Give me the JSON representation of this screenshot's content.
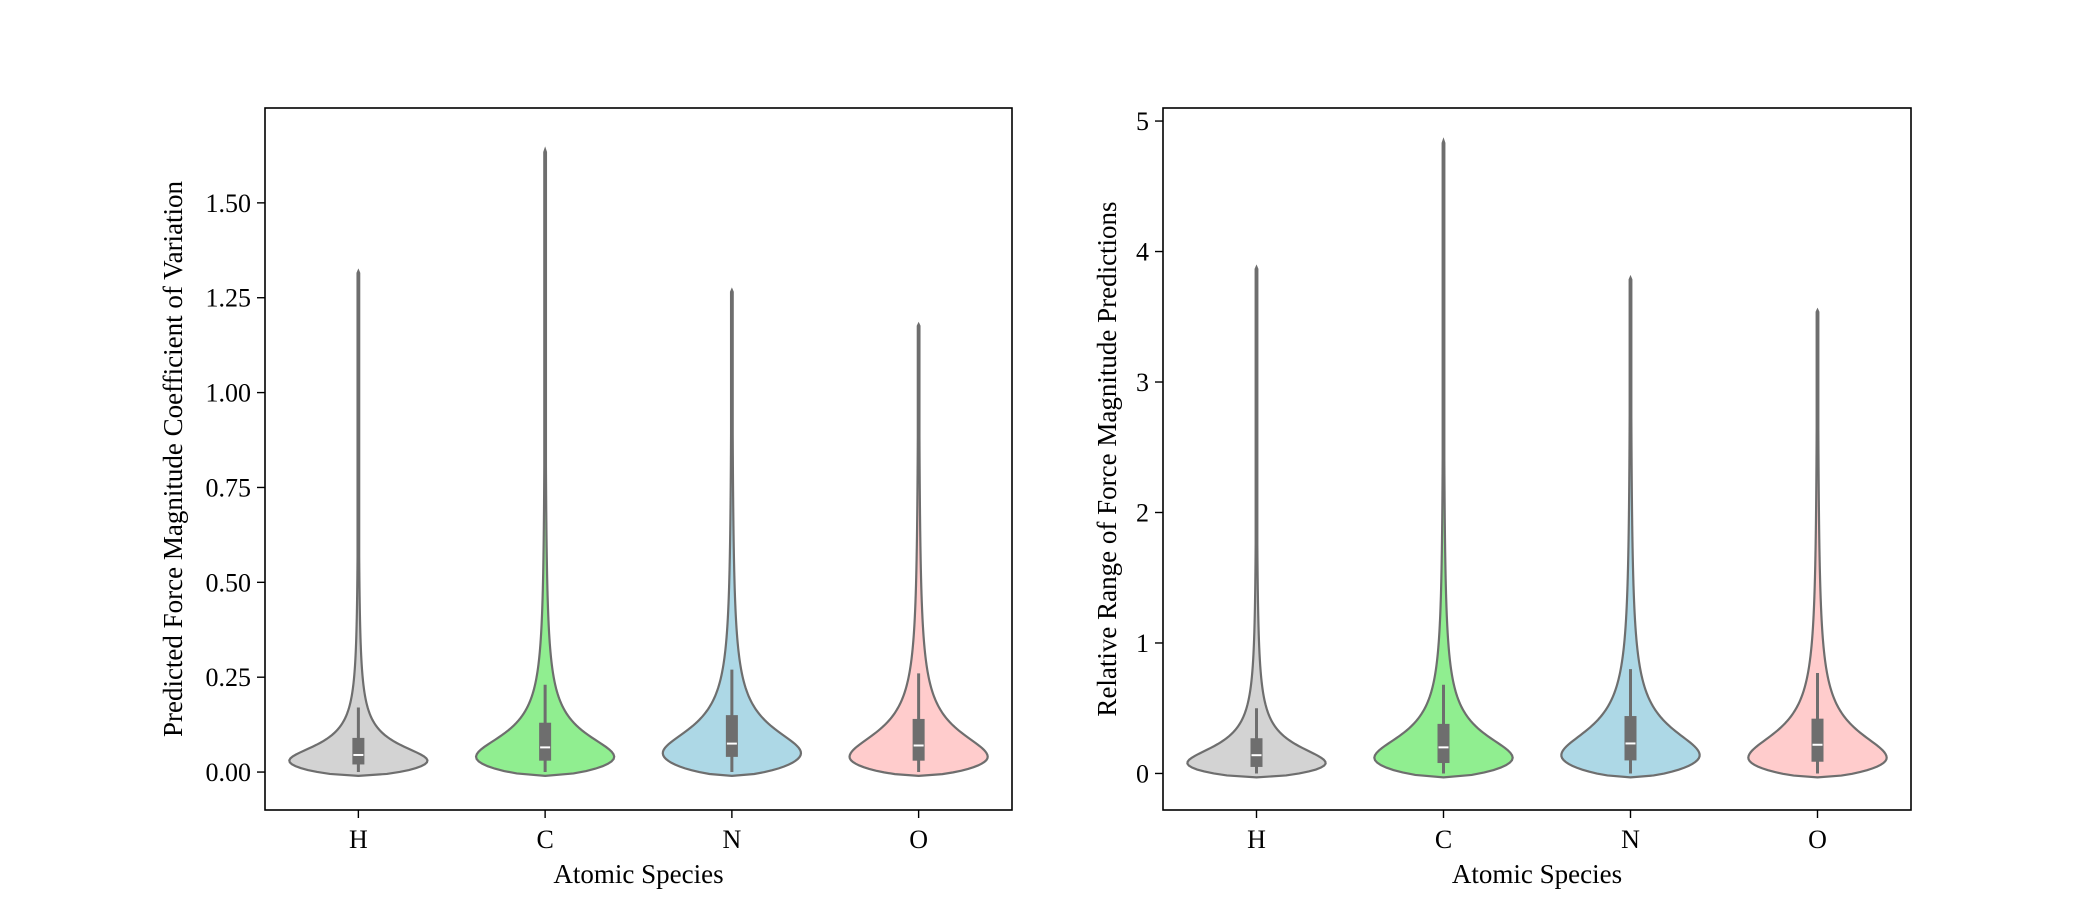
{
  "chart_data": [
    {
      "type": "violin",
      "categories": [
        "H",
        "C",
        "N",
        "O"
      ],
      "colors": [
        "#d3d3d3",
        "#90ee90",
        "#add8e6",
        "#ffcccc"
      ],
      "xlabel": "Atomic Species",
      "ylabel": "Predicted Force Magnitude Coefficient of Variation",
      "ylim": [
        -0.1,
        1.75
      ],
      "yticks": [
        0.0,
        0.25,
        0.5,
        0.75,
        1.0,
        1.25,
        1.5
      ],
      "ytick_labels": [
        "0.00",
        "0.25",
        "0.50",
        "0.75",
        "1.00",
        "1.25",
        "1.50"
      ],
      "grid": false,
      "violins": [
        {
          "name": "H",
          "min": -0.01,
          "max": 1.32,
          "q1": 0.02,
          "median": 0.045,
          "q3": 0.09,
          "whisker_low": 0.0,
          "whisker_high": 0.17,
          "mode": 0.03
        },
        {
          "name": "C",
          "min": -0.01,
          "max": 1.64,
          "q1": 0.03,
          "median": 0.065,
          "q3": 0.13,
          "whisker_low": 0.0,
          "whisker_high": 0.23,
          "mode": 0.04
        },
        {
          "name": "N",
          "min": -0.01,
          "max": 1.27,
          "q1": 0.04,
          "median": 0.075,
          "q3": 0.15,
          "whisker_low": 0.0,
          "whisker_high": 0.27,
          "mode": 0.05
        },
        {
          "name": "O",
          "min": -0.01,
          "max": 1.18,
          "q1": 0.03,
          "median": 0.07,
          "q3": 0.14,
          "whisker_low": 0.0,
          "whisker_high": 0.26,
          "mode": 0.04
        }
      ]
    },
    {
      "type": "violin",
      "categories": [
        "H",
        "C",
        "N",
        "O"
      ],
      "colors": [
        "#d3d3d3",
        "#90ee90",
        "#add8e6",
        "#ffcccc"
      ],
      "xlabel": "Atomic Species",
      "ylabel": "Relative Range of Force Magnitude Predictions",
      "ylim": [
        -0.28,
        5.1
      ],
      "yticks": [
        0,
        1,
        2,
        3,
        4,
        5
      ],
      "ytick_labels": [
        "0",
        "1",
        "2",
        "3",
        "4",
        "5"
      ],
      "grid": false,
      "violins": [
        {
          "name": "H",
          "min": -0.03,
          "max": 3.88,
          "q1": 0.05,
          "median": 0.14,
          "q3": 0.27,
          "whisker_low": 0.0,
          "whisker_high": 0.5,
          "mode": 0.08
        },
        {
          "name": "C",
          "min": -0.03,
          "max": 4.85,
          "q1": 0.08,
          "median": 0.2,
          "q3": 0.38,
          "whisker_low": 0.0,
          "whisker_high": 0.68,
          "mode": 0.12
        },
        {
          "name": "N",
          "min": -0.03,
          "max": 3.8,
          "q1": 0.1,
          "median": 0.23,
          "q3": 0.44,
          "whisker_low": 0.0,
          "whisker_high": 0.8,
          "mode": 0.14
        },
        {
          "name": "O",
          "min": -0.03,
          "max": 3.55,
          "q1": 0.09,
          "median": 0.22,
          "q3": 0.42,
          "whisker_low": 0.0,
          "whisker_high": 0.77,
          "mode": 0.12
        }
      ]
    }
  ]
}
